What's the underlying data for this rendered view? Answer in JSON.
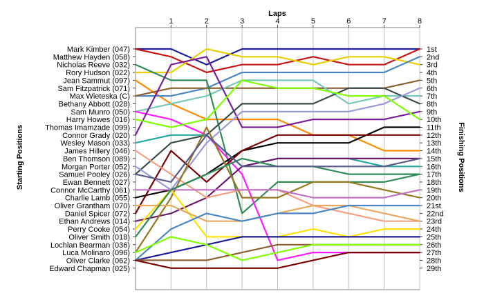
{
  "chart_data": {
    "type": "line",
    "title": "",
    "xlabel": "Laps",
    "ylabel_left": "Starting Positions",
    "ylabel_right": "Finishing Positions",
    "x": [
      0,
      1,
      2,
      3,
      4,
      5,
      6,
      7,
      8
    ],
    "x_tick_labels": [
      "1",
      "2",
      "3",
      "4",
      "5",
      "6",
      "7",
      "8"
    ],
    "starting_labels": [
      "Mark Kimber (047)",
      "Matthew Hayden (058)",
      "Nicholas Reeve (032)",
      "Rory Hudson (022)",
      "Jean Sammut (097)",
      "Sam Fitzpatrick (071)",
      "Max Wieteska (C)",
      "Bethany Abbott (028)",
      "Sam Munro (050)",
      "Harry Howes (016)",
      "Thomas Imamzade (099)",
      "Connor Grady (020)",
      "Wesley Mason (033)",
      "James Hillery (046)",
      "Ben Thomson (089)",
      "Morgan Porter (052)",
      "Samuel Pooley (026)",
      "Ewan Bennett (027)",
      "Connor McCarthy (061)",
      "Charlie Lamb (055)",
      "Oliver Grantham (070)",
      "Daniel Spicer (072)",
      "Ethan Andrews (014)",
      "Perry Cooke (054)",
      "Oliver Smith (018)",
      "Lochlan Bearman (036)",
      "Luca Molinaro (096)",
      "Oliver Clarke (062)",
      "Edward Chapman (025)"
    ],
    "finishing_labels": [
      "1st",
      "2nd",
      "3rd",
      "4th",
      "5th",
      "6th",
      "7th",
      "8th",
      "9th",
      "10th",
      "11th",
      "12th",
      "13th",
      "14th",
      "15th",
      "16th",
      "17th",
      "18th",
      "19th",
      "20th",
      "21st",
      "22nd",
      "23rd",
      "24th",
      "25th",
      "26th",
      "27th",
      "28th",
      "29th"
    ],
    "y_range": [
      1,
      29
    ],
    "y_reversed": true,
    "grid": "vertical lines at each lap",
    "series": [
      {
        "color": "#1c1c9c",
        "positions": [
          1,
          1,
          3,
          1,
          1,
          1,
          1,
          1,
          1
        ]
      },
      {
        "color": "#c81414",
        "positions": [
          1,
          2,
          4,
          3,
          3,
          2,
          3,
          3,
          1
        ]
      },
      {
        "color": "#e8d000",
        "positions": [
          4,
          4,
          1,
          2,
          2,
          3,
          2,
          2,
          3
        ]
      },
      {
        "color": "#ff8c00",
        "positions": [
          5,
          8,
          10,
          10,
          10,
          12,
          12,
          14,
          14
        ]
      },
      {
        "color": "#4a86c6",
        "positions": [
          7,
          7,
          6,
          4,
          4,
          4,
          4,
          4,
          2
        ]
      },
      {
        "color": "#8c6030",
        "positions": [
          7,
          6,
          6,
          6,
          6,
          6,
          6,
          6,
          5
        ]
      },
      {
        "color": "#76c8b8",
        "positions": [
          9,
          8,
          7,
          5,
          5,
          5,
          8,
          7,
          7
        ]
      },
      {
        "color": "#2e8b57",
        "positions": [
          3,
          5,
          5,
          22,
          18,
          18,
          18,
          18,
          17
        ]
      },
      {
        "color": "#ff1aff",
        "positions": [
          9,
          10,
          12,
          17,
          28,
          27,
          27,
          27,
          27
        ]
      },
      {
        "color": "#7a1e9e",
        "positions": [
          12,
          3,
          2,
          11,
          11,
          10,
          10,
          10,
          9
        ]
      },
      {
        "color": "#384b4b",
        "positions": [
          17,
          13,
          12,
          8,
          8,
          8,
          6,
          6,
          8
        ]
      },
      {
        "color": "#9a9ad8",
        "positions": [
          16,
          19,
          13,
          9,
          9,
          9,
          9,
          8,
          6
        ]
      },
      {
        "color": "#000000",
        "positions": [
          20,
          19,
          17,
          14,
          13,
          13,
          13,
          11,
          11
        ]
      },
      {
        "color": "#7fff00",
        "positions": [
          10,
          11,
          10,
          5,
          6,
          6,
          7,
          7,
          10
        ]
      },
      {
        "color": "#22a8a0",
        "positions": [
          13,
          12,
          12,
          16,
          15,
          15,
          15,
          16,
          16
        ]
      },
      {
        "color": "#7a0000",
        "positions": [
          22,
          14,
          18,
          14,
          12,
          12,
          12,
          12,
          12
        ]
      },
      {
        "color": "#6a1a6a",
        "positions": [
          23,
          22,
          20,
          16,
          15,
          15,
          15,
          15,
          15
        ]
      },
      {
        "color": "#f4a080",
        "positions": [
          14,
          17,
          20,
          19,
          19,
          21,
          22,
          23,
          23
        ]
      },
      {
        "color": "#96781e",
        "positions": [
          27,
          20,
          11,
          20,
          20,
          18,
          18,
          19,
          20
        ]
      },
      {
        "color": "#ffe000",
        "positions": [
          24,
          19,
          25,
          25,
          25,
          24,
          25,
          24,
          24
        ]
      },
      {
        "color": "#1c1c9c",
        "positions": [
          28,
          27,
          26,
          25,
          25,
          25,
          25,
          25,
          25
        ]
      },
      {
        "color": "#c070c0",
        "positions": [
          19,
          19,
          19,
          19,
          19,
          20,
          20,
          20,
          19
        ]
      },
      {
        "color": "#e8a860",
        "positions": [
          21,
          21,
          23,
          23,
          22,
          21,
          21,
          22,
          23
        ]
      },
      {
        "color": "#4a86c6",
        "positions": [
          28,
          24,
          22,
          23,
          22,
          22,
          21,
          21,
          21
        ]
      },
      {
        "color": "#8c6030",
        "positions": [
          28,
          28,
          28,
          27,
          26,
          26,
          26,
          26,
          26
        ]
      },
      {
        "color": "#7fff00",
        "positions": [
          27,
          25,
          26,
          28,
          27,
          26,
          26,
          26,
          26
        ]
      },
      {
        "color": "#7a0000",
        "positions": [
          28,
          29,
          29,
          29,
          29,
          28,
          27,
          27,
          27
        ]
      },
      {
        "color": "#2e8b57",
        "positions": [
          25,
          19,
          17,
          15,
          16,
          16,
          17,
          17,
          17
        ]
      },
      {
        "color": "#5a5a8a",
        "positions": [
          17,
          18,
          12,
          16,
          16,
          16,
          16,
          16,
          15
        ]
      }
    ]
  }
}
